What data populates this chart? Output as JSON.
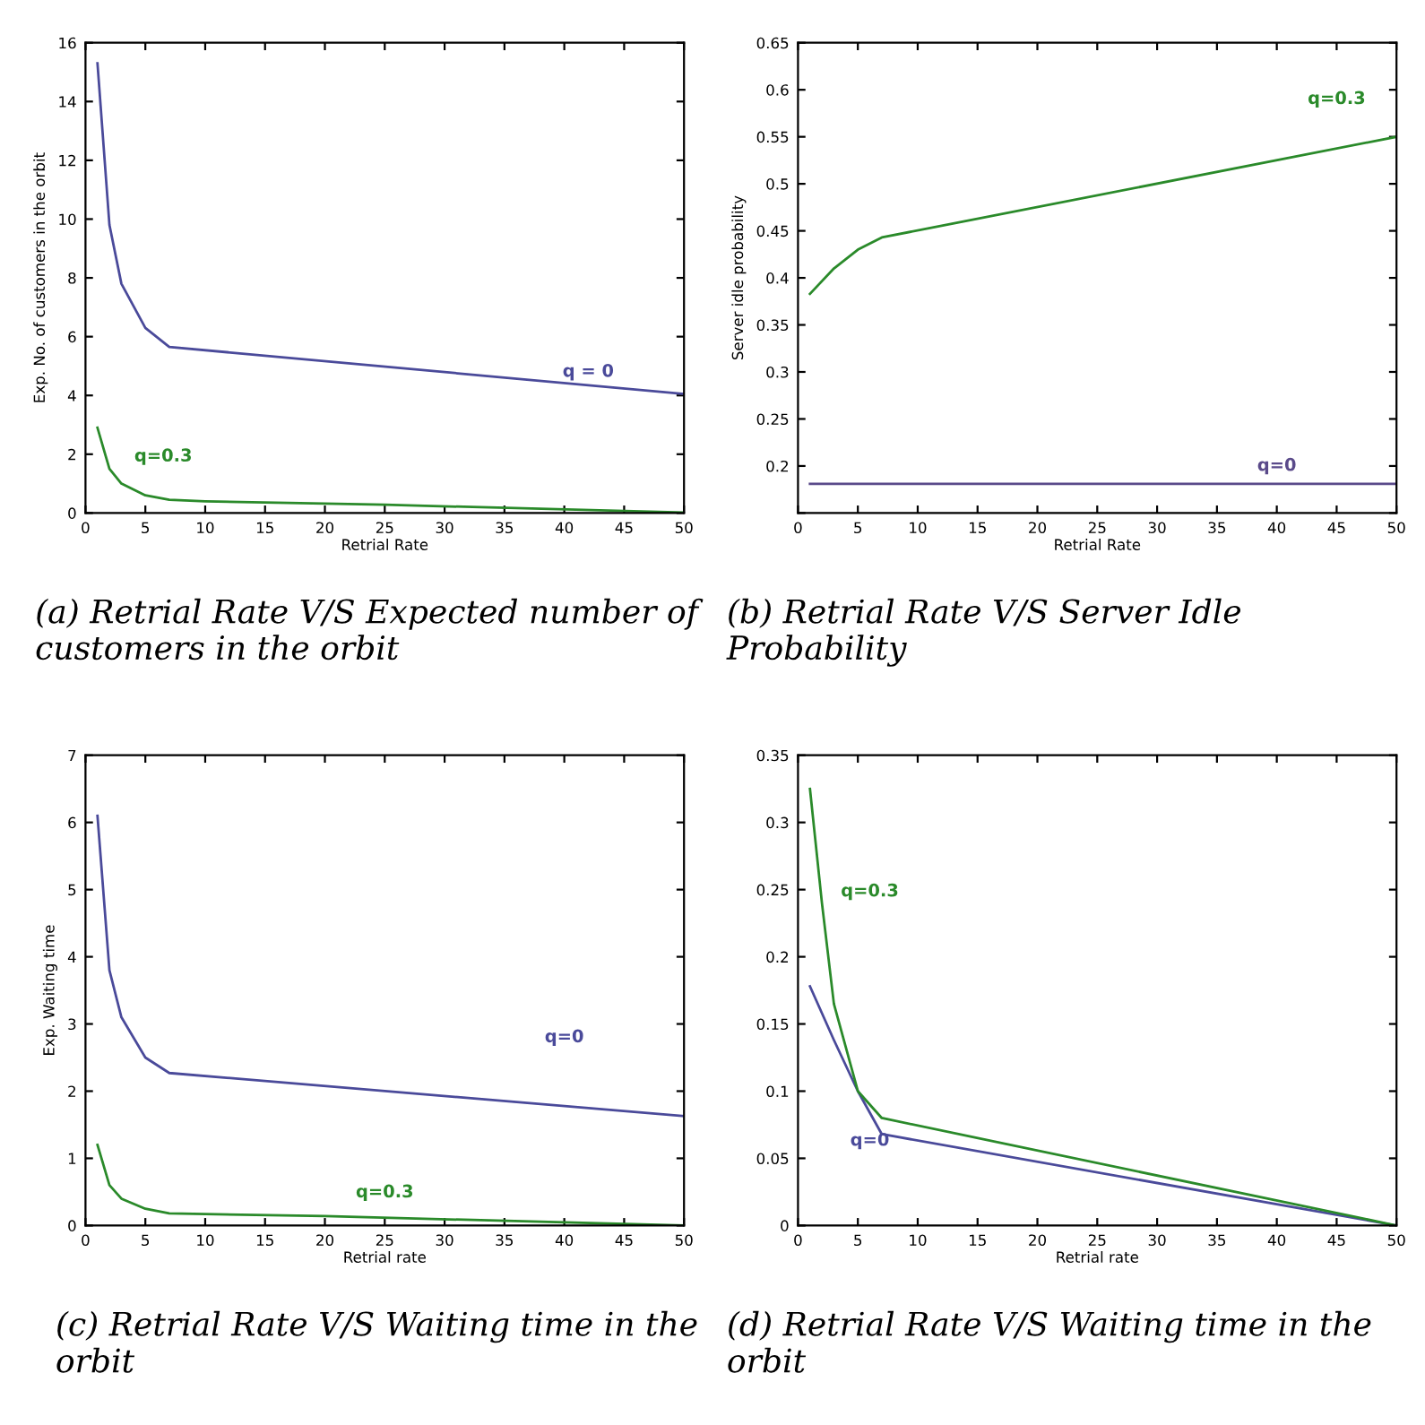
{
  "chart_data": [
    {
      "type": "line",
      "xlabel": "Retrial Rate",
      "ylabel": "Exp. No. of customers in the orbit",
      "xlim": [
        0,
        50
      ],
      "ylim": [
        0,
        16
      ],
      "xticks": [
        0,
        5,
        10,
        15,
        20,
        25,
        30,
        35,
        40,
        45,
        50
      ],
      "yticks": [
        0,
        2,
        4,
        6,
        8,
        10,
        12,
        14,
        16
      ],
      "series": [
        {
          "name": "q = 0",
          "color": "#4a4a9a",
          "x": [
            1,
            2,
            3,
            5,
            7,
            50
          ],
          "values": [
            15.3,
            9.8,
            7.8,
            6.3,
            5.65,
            4.05
          ]
        },
        {
          "name": "q=0.3",
          "color": "#2a8a2a",
          "x": [
            1,
            2,
            3,
            5,
            7,
            10,
            25,
            50
          ],
          "values": [
            2.9,
            1.5,
            1.0,
            0.6,
            0.45,
            0.4,
            0.28,
            0.02
          ]
        }
      ],
      "annotations": [
        "(a) Retrial Rate V/S Expected number of customers in the orbit"
      ]
    },
    {
      "type": "line",
      "xlabel": "Retrial Rate",
      "ylabel": "Server idle probability",
      "xlim": [
        0,
        50
      ],
      "ylim": [
        0.15,
        0.65
      ],
      "xticks": [
        0,
        5,
        10,
        15,
        20,
        25,
        30,
        35,
        40,
        45,
        50
      ],
      "yticks": [
        {
          "value": 0.15,
          "label": null
        },
        0.2,
        0.25,
        0.3,
        0.35,
        0.4,
        0.45,
        0.5,
        0.55,
        0.6,
        0.65
      ],
      "series": [
        {
          "name": "q=0",
          "color": "#5a4a8a",
          "x": [
            1,
            50
          ],
          "values": [
            0.181,
            0.181
          ]
        },
        {
          "name": "q=0.3",
          "color": "#2a8a2a",
          "x": [
            1,
            3,
            5,
            7,
            50
          ],
          "values": [
            0.383,
            0.41,
            0.43,
            0.443,
            0.55
          ]
        }
      ],
      "annotations": [
        "(b) Retrial Rate V/S Server Idle Probability"
      ]
    },
    {
      "type": "line",
      "xlabel": "Retrial rate",
      "ylabel": "Exp. Waiting time",
      "xlim": [
        0,
        50
      ],
      "ylim": [
        0,
        7
      ],
      "xticks": [
        0,
        5,
        10,
        15,
        20,
        25,
        30,
        35,
        40,
        45,
        50
      ],
      "yticks": [
        0,
        1,
        2,
        3,
        4,
        5,
        6,
        7
      ],
      "series": [
        {
          "name": "q=0",
          "color": "#4a4a9a",
          "x": [
            1,
            2,
            3,
            5,
            7,
            50
          ],
          "values": [
            6.1,
            3.8,
            3.1,
            2.5,
            2.27,
            1.63
          ]
        },
        {
          "name": "q=0.3",
          "color": "#2a8a2a",
          "x": [
            1,
            2,
            3,
            5,
            7,
            20,
            50
          ],
          "values": [
            1.2,
            0.6,
            0.4,
            0.25,
            0.18,
            0.14,
            0.0
          ]
        }
      ],
      "annotations": [
        "(c) Retrial Rate V/S Waiting time in the orbit"
      ]
    },
    {
      "type": "line",
      "xlabel": "Retrial rate",
      "xlim": [
        0,
        50
      ],
      "ylim": [
        0,
        0.35
      ],
      "xticks": [
        0,
        5,
        10,
        15,
        20,
        25,
        30,
        35,
        40,
        45,
        50
      ],
      "yticks": [
        0,
        0.05,
        0.1,
        0.15,
        0.2,
        0.25,
        0.3,
        0.35
      ],
      "series": [
        {
          "name": "q=0",
          "color": "#4a4a9a",
          "x": [
            1,
            3,
            5,
            7,
            50
          ],
          "values": [
            0.178,
            0.138,
            0.1,
            0.068,
            0.0
          ]
        },
        {
          "name": "q=0.3",
          "color": "#2a8a2a",
          "x": [
            1,
            2,
            3,
            5,
            7,
            50
          ],
          "values": [
            0.325,
            0.24,
            0.165,
            0.1,
            0.08,
            0.0
          ]
        }
      ],
      "annotations": [
        "(d) Retrial Rate V/S Waiting time in the orbit"
      ]
    }
  ]
}
